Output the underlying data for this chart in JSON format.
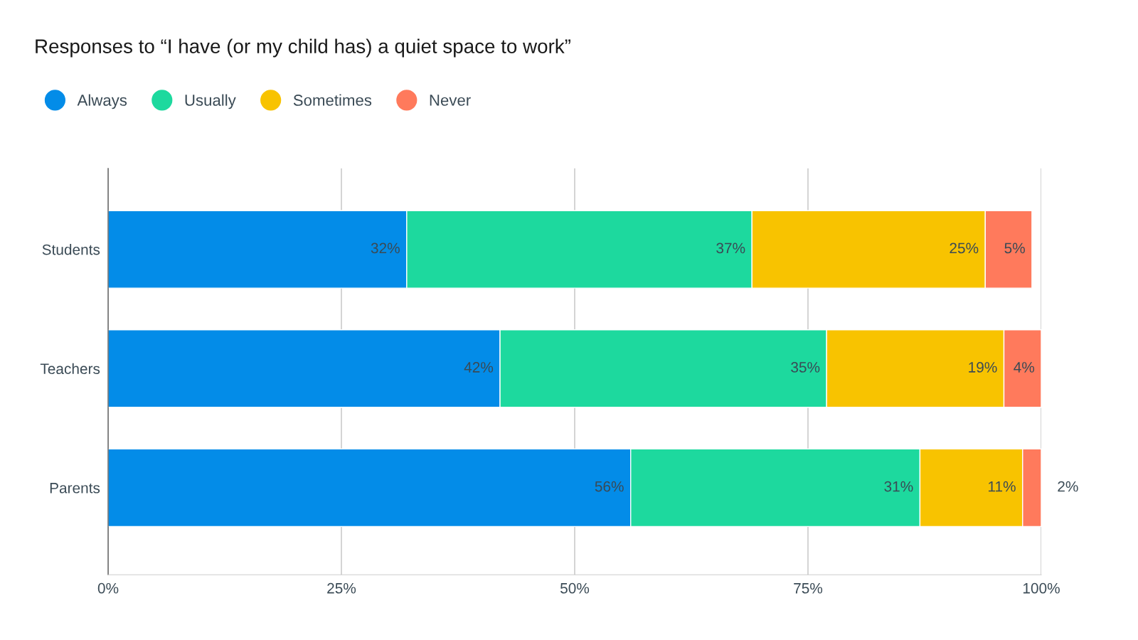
{
  "chart_data": {
    "type": "bar",
    "orientation": "horizontal",
    "stacked": true,
    "title": "Responses to “I have (or my child has) a quiet space to work”",
    "categories": [
      "Students",
      "Teachers",
      "Parents"
    ],
    "series": [
      {
        "name": "Always",
        "color": "#038ce8",
        "values": [
          32,
          42,
          56
        ],
        "value_labels": [
          "32%",
          "42%",
          "56%"
        ]
      },
      {
        "name": "Usually",
        "color": "#1dd99e",
        "values": [
          37,
          35,
          31
        ],
        "value_labels": [
          "37%",
          "35%",
          "31%"
        ]
      },
      {
        "name": "Sometimes",
        "color": "#f8c300",
        "values": [
          25,
          19,
          11
        ],
        "value_labels": [
          "25%",
          "19%",
          "11%"
        ]
      },
      {
        "name": "Never",
        "color": "#ff7a5c",
        "values": [
          5,
          4,
          2
        ],
        "value_labels": [
          "5%",
          "4%",
          "2%"
        ]
      }
    ],
    "xlim": [
      0,
      100
    ],
    "xticks": [
      {
        "value": 0,
        "label": "0%"
      },
      {
        "value": 25,
        "label": "25%"
      },
      {
        "value": 50,
        "label": "50%"
      },
      {
        "value": 75,
        "label": "75%"
      },
      {
        "value": 100,
        "label": "100%"
      }
    ],
    "grid": "x",
    "legend": "top left"
  }
}
